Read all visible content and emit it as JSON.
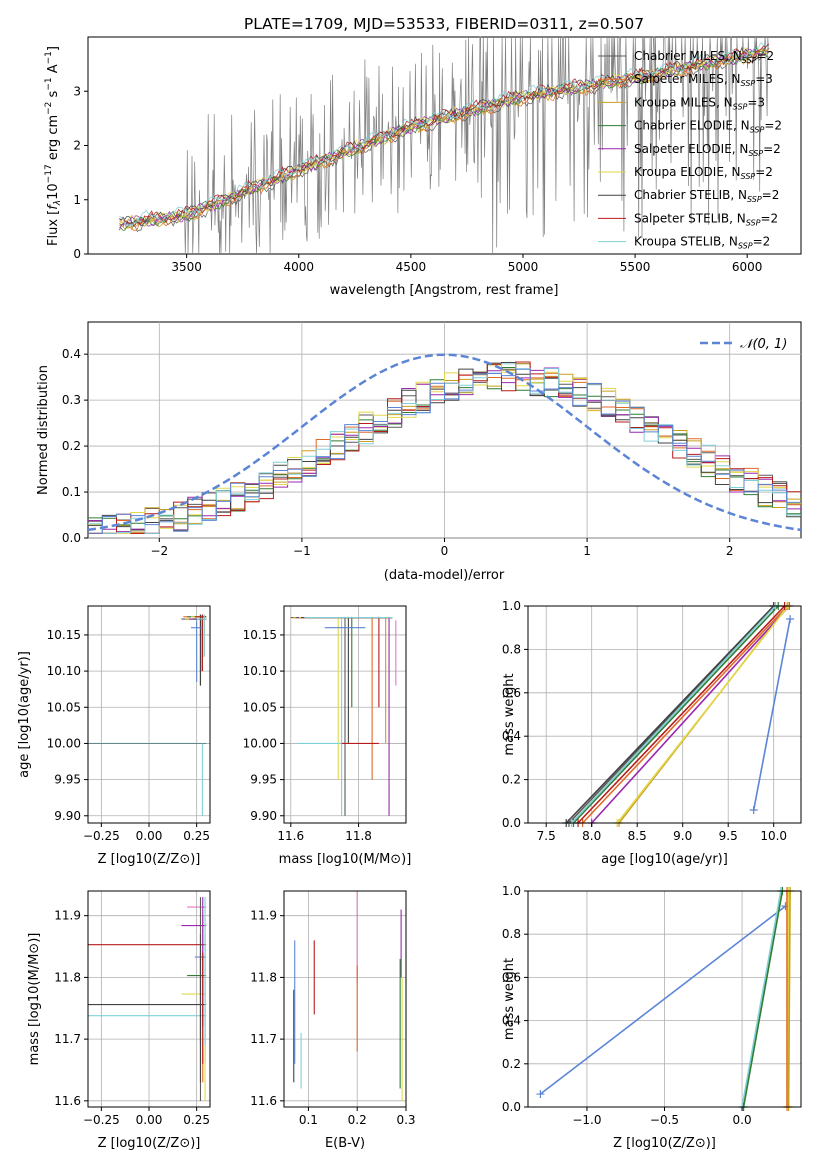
{
  "figure": {
    "title": "PLATE=1709, MJD=53533, FIBERID=0311, z=0.507"
  },
  "series": [
    {
      "name": "Chabrier MILES",
      "nssp": "2",
      "color": "#5b5b5b"
    },
    {
      "name": "Salpeter MILES",
      "nssp": "3",
      "color": "#e06a28"
    },
    {
      "name": "Kroupa MILES",
      "nssp": "3",
      "color": "#c8a020"
    },
    {
      "name": "Chabrier ELODIE",
      "nssp": "2",
      "color": "#2e7d32"
    },
    {
      "name": "Salpeter ELODIE",
      "nssp": "2",
      "color": "#9c27b0"
    },
    {
      "name": "Kroupa ELODIE",
      "nssp": "2",
      "color": "#e3d84a"
    },
    {
      "name": "Chabrier STELIB",
      "nssp": "2",
      "color": "#424242"
    },
    {
      "name": "Salpeter STELIB",
      "nssp": "2",
      "color": "#b71c1c"
    },
    {
      "name": "Kroupa STELIB",
      "nssp": "2",
      "color": "#80d0d8"
    }
  ],
  "chart_data": [
    {
      "id": "spectrum",
      "type": "line",
      "xlabel": "wavelength [Angstrom, rest frame]",
      "ylabel": "Flux [f_λ 10^-17 erg cm^-2 s^-1 A^-1]",
      "xlim": [
        3060,
        6240
      ],
      "ylim": [
        0,
        4.0
      ],
      "xticks": [
        "3500",
        "4000",
        "4500",
        "5000",
        "5500",
        "6000"
      ],
      "yticks": [
        "0",
        "1",
        "2",
        "3"
      ],
      "data_color": "#808080",
      "data_x_range": [
        3200,
        6100
      ],
      "model_points": [
        [
          3200,
          0.55
        ],
        [
          3500,
          0.72
        ],
        [
          4000,
          1.55
        ],
        [
          4500,
          2.35
        ],
        [
          5000,
          2.9
        ],
        [
          5500,
          3.25
        ],
        [
          6100,
          3.75
        ]
      ],
      "legend_position": "right"
    },
    {
      "id": "residuals",
      "type": "line",
      "xlabel": "(data-model)/error",
      "ylabel": "Normed distribution",
      "xlim": [
        -2.5,
        2.5
      ],
      "ylim": [
        0,
        0.47
      ],
      "xticks": [
        "−2",
        "−1",
        "0",
        "1",
        "2"
      ],
      "yticks": [
        "0.0",
        "0.1",
        "0.2",
        "0.3",
        "0.4"
      ],
      "legend": "𝒩(0, 1)",
      "gaussian": {
        "mean": 0,
        "sigma": 1,
        "color": "#5c85d6"
      },
      "grid": true
    },
    {
      "id": "age-vs-z",
      "type": "scatter",
      "xlabel": "Z [log10(Z/Z⊙)]",
      "ylabel": "age [log10(age/yr)]",
      "xlim": [
        -0.32,
        0.32
      ],
      "ylim": [
        9.89,
        10.19
      ],
      "xticks": [
        "−0.25",
        "0.00",
        "0.25"
      ],
      "yticks": [
        "9.90",
        "9.95",
        "10.00",
        "10.05",
        "10.10",
        "10.15"
      ],
      "grid": true
    },
    {
      "id": "age-vs-mass",
      "type": "scatter",
      "xlabel": "mass [log10(M/M⊙)]",
      "ylabel": "",
      "xlim": [
        11.58,
        11.94
      ],
      "ylim": [
        9.89,
        10.19
      ],
      "xticks": [
        "11.6",
        "11.8"
      ],
      "yticks": [
        "9.90",
        "9.95",
        "10.00",
        "10.05",
        "10.10",
        "10.15"
      ],
      "grid": true
    },
    {
      "id": "cum-age",
      "type": "line",
      "xlabel": "age [log10(age/yr)]",
      "ylabel": "mass weight",
      "xlim": [
        7.3,
        10.3
      ],
      "ylim": [
        0,
        1.0
      ],
      "xticks": [
        "7.5",
        "8.0",
        "8.5",
        "9.0",
        "9.5",
        "10.0"
      ],
      "yticks": [
        "0.0",
        "0.2",
        "0.4",
        "0.6",
        "0.8",
        "1.0"
      ],
      "grid": true,
      "lines": [
        {
          "series": 0,
          "x": [
            7.75,
            10.0
          ],
          "y": [
            0,
            1.0
          ]
        },
        {
          "series": 1,
          "x": [
            7.9,
            10.15
          ],
          "y": [
            0,
            1.0
          ]
        },
        {
          "series": 2,
          "x": [
            8.3,
            10.15
          ],
          "y": [
            0,
            1.0
          ]
        },
        {
          "series": 3,
          "x": [
            7.8,
            10.05
          ],
          "y": [
            0,
            1.0
          ]
        },
        {
          "series": 4,
          "x": [
            8.0,
            10.17
          ],
          "y": [
            0,
            1.0
          ]
        },
        {
          "series": 5,
          "x": [
            8.28,
            10.16
          ],
          "y": [
            0,
            1.0
          ]
        },
        {
          "series": 6,
          "x": [
            7.72,
            10.0
          ],
          "y": [
            0,
            1.0
          ]
        },
        {
          "series": 7,
          "x": [
            7.85,
            10.12
          ],
          "y": [
            0,
            1.0
          ]
        },
        {
          "series": 8,
          "x": [
            7.78,
            10.02
          ],
          "y": [
            0,
            1.0
          ]
        },
        {
          "series": 9,
          "x": [
            9.78,
            10.18
          ],
          "y": [
            0.06,
            0.94
          ]
        }
      ]
    },
    {
      "id": "mass-vs-z",
      "type": "scatter",
      "xlabel": "Z [log10(Z/Z⊙)]",
      "ylabel": "mass [log10(M/M⊙)]",
      "xlim": [
        -0.32,
        0.32
      ],
      "ylim": [
        11.59,
        11.94
      ],
      "xticks": [
        "−0.25",
        "0.00",
        "0.25"
      ],
      "yticks": [
        "11.6",
        "11.7",
        "11.8",
        "11.9"
      ],
      "grid": true
    },
    {
      "id": "mass-vs-ebv",
      "type": "scatter",
      "xlabel": "E(B-V)",
      "ylabel": "",
      "xlim": [
        0.05,
        0.3
      ],
      "ylim": [
        11.59,
        11.94
      ],
      "xticks": [
        "0.1",
        "0.2",
        "0.3"
      ],
      "yticks": [
        "11.6",
        "11.7",
        "11.8",
        "11.9"
      ],
      "grid": true
    },
    {
      "id": "cum-z",
      "type": "line",
      "xlabel": "Z [log10(Z/Z⊙)]",
      "ylabel": "mass weight",
      "xlim": [
        -1.38,
        0.38
      ],
      "ylim": [
        0,
        1.0
      ],
      "xticks": [
        "−1.0",
        "−0.5",
        "0.0"
      ],
      "yticks": [
        "0.0",
        "0.2",
        "0.4",
        "0.6",
        "0.8",
        "1.0"
      ],
      "grid": true,
      "lines": [
        {
          "series": 9,
          "x": [
            -1.3,
            0.28
          ],
          "y": [
            0.06,
            0.93
          ]
        },
        {
          "series": 8,
          "x": [
            0.0,
            0.25
          ],
          "y": [
            0,
            1.0
          ]
        },
        {
          "series": 3,
          "x": [
            0.01,
            0.26
          ],
          "y": [
            0,
            1.0
          ]
        },
        {
          "series": 5,
          "x": [
            0.3,
            0.3
          ],
          "y": [
            0,
            1.0
          ]
        },
        {
          "series": 1,
          "x": [
            0.29,
            0.29
          ],
          "y": [
            0,
            1.0
          ]
        },
        {
          "series": 2,
          "x": [
            0.3,
            0.31
          ],
          "y": [
            0,
            1.0
          ]
        }
      ]
    }
  ]
}
